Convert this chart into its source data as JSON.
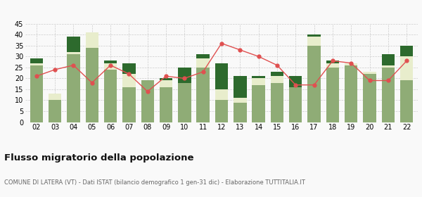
{
  "years": [
    "02",
    "03",
    "04",
    "05",
    "06",
    "07",
    "08",
    "09",
    "10",
    "11",
    "12",
    "13",
    "14",
    "15",
    "16",
    "17",
    "18",
    "19",
    "20",
    "21",
    "22"
  ],
  "iscritti_altri_comuni": [
    26,
    10,
    31,
    34,
    24,
    16,
    19,
    16,
    18,
    25,
    10,
    9,
    17,
    18,
    16,
    35,
    25,
    26,
    22,
    25,
    19
  ],
  "iscritti_estero": [
    1,
    3,
    1,
    7,
    3,
    6,
    0,
    3,
    0,
    4,
    5,
    2,
    3,
    3,
    0,
    4,
    2,
    1,
    1,
    1,
    11
  ],
  "iscritti_altri": [
    2,
    0,
    7,
    0,
    1,
    5,
    0,
    1,
    7,
    2,
    12,
    10,
    1,
    2,
    5,
    1,
    1,
    0,
    0,
    5,
    5
  ],
  "cancellati": [
    21,
    24,
    26,
    18,
    26,
    22,
    14,
    21,
    20,
    23,
    36,
    33,
    30,
    26,
    17,
    17,
    28,
    27,
    19,
    19,
    28
  ],
  "color_altri_comuni": "#8fac76",
  "color_estero": "#e8edcc",
  "color_altri": "#2d6a2d",
  "color_cancellati": "#e05050",
  "title": "Flusso migratorio della popolazione",
  "subtitle": "COMUNE DI LATERA (VT) - Dati ISTAT (bilancio demografico 1 gen-31 dic) - Elaborazione TUTTITALIA.IT",
  "ylim": [
    0,
    45
  ],
  "yticks": [
    0,
    5,
    10,
    15,
    20,
    25,
    30,
    35,
    40,
    45
  ],
  "bg_color": "#f9f9f9",
  "grid_color": "#cccccc"
}
